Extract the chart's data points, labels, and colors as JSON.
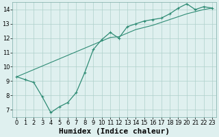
{
  "title": "",
  "xlabel": "Humidex (Indice chaleur)",
  "ylabel": "",
  "x": [
    0,
    1,
    2,
    3,
    4,
    5,
    6,
    7,
    8,
    9,
    10,
    11,
    12,
    13,
    14,
    15,
    16,
    17,
    18,
    19,
    20,
    21,
    22,
    23
  ],
  "line_zigzag": [
    9.3,
    9.1,
    8.9,
    7.9,
    6.8,
    7.2,
    7.5,
    8.2,
    9.6,
    11.2,
    11.9,
    12.4,
    12.0,
    12.8,
    13.0,
    13.2,
    13.3,
    13.4,
    13.7,
    14.1,
    14.4,
    14.0,
    14.2,
    14.1
  ],
  "line_straight": [
    9.3,
    9.55,
    9.8,
    10.05,
    10.3,
    10.55,
    10.8,
    11.05,
    11.3,
    11.55,
    11.8,
    12.05,
    12.1,
    12.35,
    12.6,
    12.75,
    12.9,
    13.1,
    13.3,
    13.5,
    13.7,
    13.85,
    14.0,
    14.1
  ],
  "line_color": "#2e8b74",
  "bg_color": "#dff0ef",
  "grid_color": "#aecfca",
  "xlim": [
    -0.5,
    23.5
  ],
  "ylim": [
    6.5,
    14.5
  ],
  "yticks": [
    7,
    8,
    9,
    10,
    11,
    12,
    13,
    14
  ],
  "xticks": [
    0,
    1,
    2,
    3,
    4,
    5,
    6,
    7,
    8,
    9,
    10,
    11,
    12,
    13,
    14,
    15,
    16,
    17,
    18,
    19,
    20,
    21,
    22,
    23
  ],
  "tick_fontsize": 6.0,
  "xlabel_fontsize": 8.0
}
